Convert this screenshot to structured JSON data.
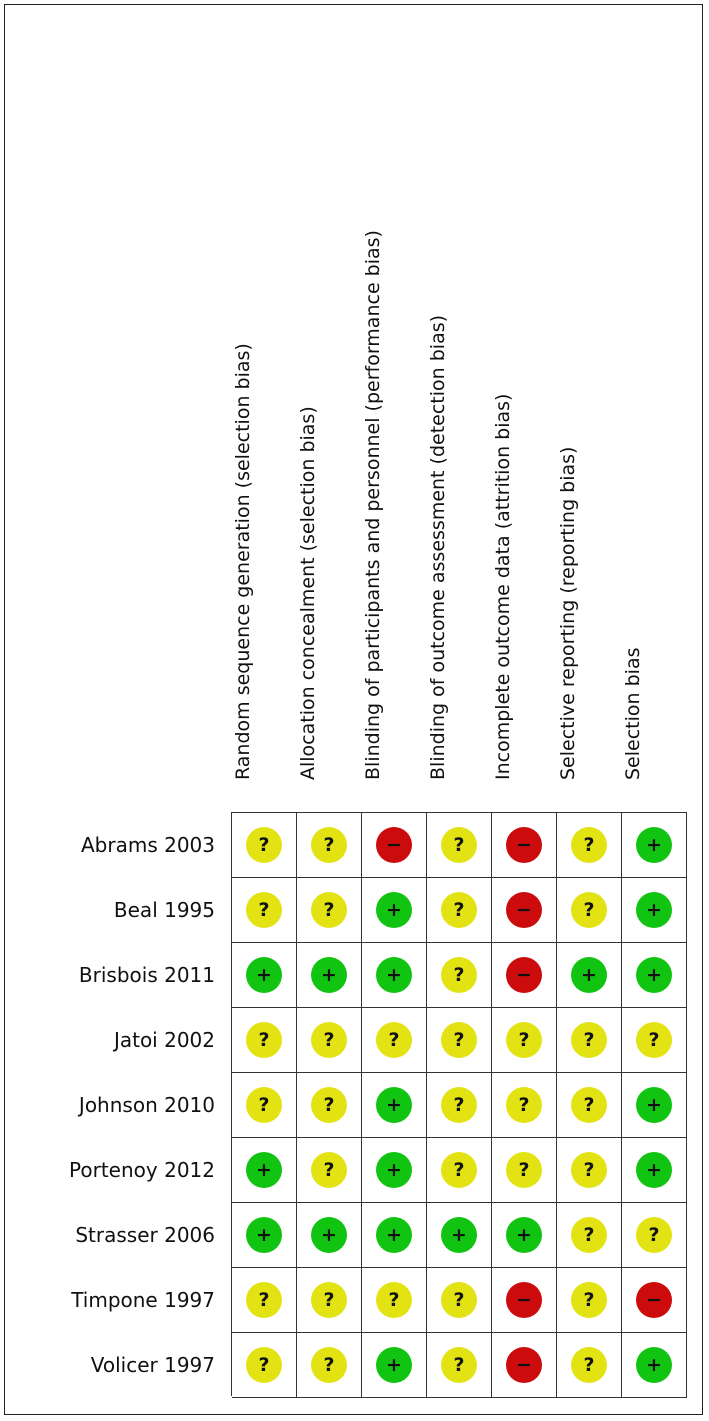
{
  "domains": [
    "Random sequence generation (selection bias)",
    "Allocation concealment (selection bias)",
    "Blinding of participants and personnel (performance bias)",
    "Blinding of outcome assessment (detection bias)",
    "Incomplete outcome data (attrition bias)",
    "Selective reporting (reporting bias)",
    "Selection bias"
  ],
  "symbols": {
    "low": "+",
    "unclear": "?",
    "high": "−"
  },
  "colors": {
    "low": "#12c412",
    "unclear": "#e3e314",
    "high": "#cc0c0c",
    "border": "#333333"
  },
  "studies": [
    {
      "label": "Abrams 2003",
      "ratings": [
        "unclear",
        "unclear",
        "high",
        "unclear",
        "high",
        "unclear",
        "low"
      ]
    },
    {
      "label": "Beal 1995",
      "ratings": [
        "unclear",
        "unclear",
        "low",
        "unclear",
        "high",
        "unclear",
        "low"
      ]
    },
    {
      "label": "Brisbois 2011",
      "ratings": [
        "low",
        "low",
        "low",
        "unclear",
        "high",
        "low",
        "low"
      ]
    },
    {
      "label": "Jatoi 2002",
      "ratings": [
        "unclear",
        "unclear",
        "unclear",
        "unclear",
        "unclear",
        "unclear",
        "unclear"
      ]
    },
    {
      "label": "Johnson  2010",
      "ratings": [
        "unclear",
        "unclear",
        "low",
        "unclear",
        "unclear",
        "unclear",
        "low"
      ]
    },
    {
      "label": "Portenoy  2012",
      "ratings": [
        "low",
        "unclear",
        "low",
        "unclear",
        "unclear",
        "unclear",
        "low"
      ]
    },
    {
      "label": "Strasser 2006",
      "ratings": [
        "low",
        "low",
        "low",
        "low",
        "low",
        "unclear",
        "unclear"
      ]
    },
    {
      "label": "Timpone 1997",
      "ratings": [
        "unclear",
        "unclear",
        "unclear",
        "unclear",
        "high",
        "unclear",
        "high"
      ]
    },
    {
      "label": "Volicer 1997",
      "ratings": [
        "unclear",
        "unclear",
        "low",
        "unclear",
        "high",
        "unclear",
        "low"
      ]
    }
  ]
}
